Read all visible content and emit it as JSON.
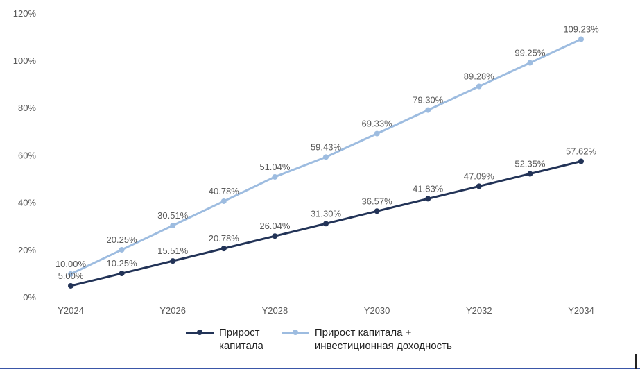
{
  "chart_data": {
    "type": "line",
    "x": [
      "Y2024",
      "Y2025",
      "Y2026",
      "Y2027",
      "Y2028",
      "Y2029",
      "Y2030",
      "Y2031",
      "Y2032",
      "Y2033",
      "Y2034"
    ],
    "x_tick_labels": [
      "Y2024",
      "Y2026",
      "Y2028",
      "Y2030",
      "Y2032",
      "Y2034"
    ],
    "y_tick_labels": [
      "0%",
      "20%",
      "40%",
      "60%",
      "80%",
      "100%",
      "120%"
    ],
    "ylim": [
      0,
      120
    ],
    "grid": false,
    "legend_position": "bottom",
    "series": [
      {
        "name": "Прирост капитала",
        "color": "#223357",
        "values": [
          5.0,
          10.25,
          15.51,
          20.78,
          26.04,
          31.3,
          36.57,
          41.83,
          47.09,
          52.35,
          57.62
        ],
        "labels": [
          "5.00%",
          "10.25%",
          "15.51%",
          "20.78%",
          "26.04%",
          "31.30%",
          "36.57%",
          "41.83%",
          "47.09%",
          "52.35%",
          "57.62%"
        ]
      },
      {
        "name": "Прирост капитала + инвестиционная доходность",
        "color": "#9dbce0",
        "values": [
          10.0,
          20.25,
          30.51,
          40.78,
          51.04,
          59.43,
          69.33,
          79.3,
          89.28,
          99.25,
          109.23
        ],
        "labels": [
          "10.00%",
          "20.25%",
          "30.51%",
          "40.78%",
          "51.04%",
          "59.43%",
          "69.33%",
          "79.30%",
          "89.28%",
          "99.25%",
          "109.23%"
        ]
      }
    ]
  },
  "legend": {
    "item1": "Прирост\nкапитала",
    "item2": "Прирост капитала +\nинвестиционная доходность"
  }
}
